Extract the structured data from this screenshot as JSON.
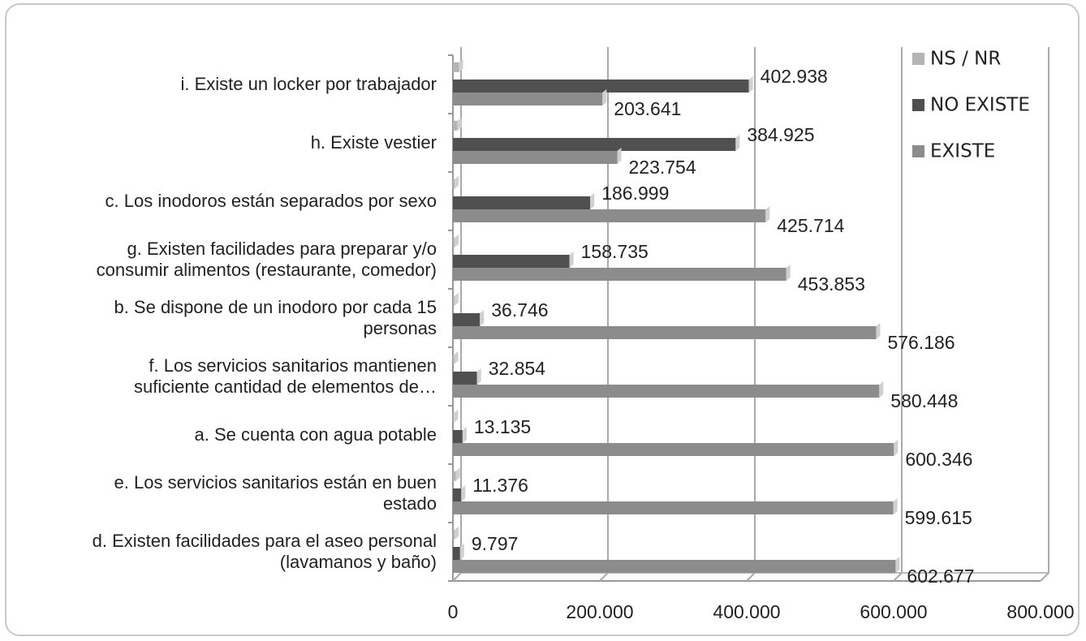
{
  "chart_data": {
    "type": "bar",
    "orientation": "horizontal",
    "categories": [
      "i. Existe un locker por trabajador",
      "h. Existe vestier",
      "c. Los inodoros están separados por sexo",
      "g. Existen facilidades para preparar y/o\nconsumir alimentos (restaurante, comedor)",
      "b. Se dispone de un inodoro por cada 15\npersonas",
      "f. Los servicios sanitarios mantienen\nsuficiente cantidad de elementos de…",
      "a. Se cuenta con agua potable",
      "e. Los servicios sanitarios están en buen\nestado",
      "d. Existen facilidades para el aseo personal\n(lavamanos y baño)"
    ],
    "series": [
      {
        "name": "NS / NR",
        "color": "#b4b4b4",
        "values": [
          8400,
          6300,
          2300,
          2400,
          2100,
          1700,
          1500,
          4000,
          2500
        ]
      },
      {
        "name": "NO EXISTE",
        "color": "#505050",
        "values": [
          402938,
          384925,
          186999,
          158735,
          36746,
          32854,
          13135,
          11376,
          9797
        ],
        "value_labels": [
          "402.938",
          "384.925",
          "186.999",
          "158.735",
          "36.746",
          "32.854",
          "13.135",
          "11.376",
          "9.797"
        ]
      },
      {
        "name": "EXISTE",
        "color": "#8c8c8c",
        "values": [
          203641,
          223754,
          425714,
          453853,
          576186,
          580448,
          600346,
          599615,
          602677
        ],
        "value_labels": [
          "203.641",
          "223.754",
          "425.714",
          "453.853",
          "576.186",
          "580.448",
          "600.346",
          "599.615",
          "602.677"
        ]
      }
    ],
    "xlim": [
      0,
      800000
    ],
    "xticks": [
      0,
      {
        "value": 200000,
        "label": "200.000"
      },
      {
        "value": 400000,
        "label": "400.000"
      },
      {
        "value": 600000,
        "label": "600.000"
      },
      {
        "value": 800000,
        "label": "800.000"
      }
    ],
    "grid": true,
    "legend": "top-right"
  }
}
